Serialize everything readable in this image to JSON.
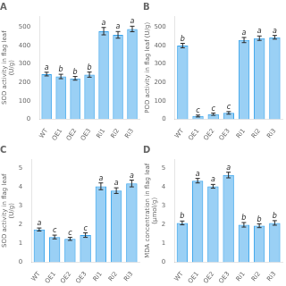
{
  "chart_data": [
    {
      "type": "bar",
      "title": "A",
      "y_label": "SOD activity in flag leaf\n(U/g)",
      "categories": [
        "WT",
        "OE1",
        "OE2",
        "OE3",
        "Ri1",
        "Ri2",
        "Ri3"
      ],
      "values": [
        245,
        232,
        222,
        242,
        478,
        458,
        490
      ],
      "errors": [
        10,
        12,
        10,
        14,
        20,
        18,
        15
      ],
      "annotations": [
        "a",
        "b",
        "b",
        "b",
        "a",
        "a",
        "a"
      ],
      "ylim": [
        0,
        560
      ],
      "yticks": [
        0,
        100,
        200,
        300,
        400,
        500
      ],
      "grid": false
    },
    {
      "type": "bar",
      "title": "B",
      "y_label": "POD activity in flag leaf (U/g)",
      "categories": [
        "WT",
        "OE1",
        "OE2",
        "OE3",
        "Ri1",
        "Ri2",
        "Ri3"
      ],
      "values": [
        400,
        18,
        28,
        35,
        430,
        440,
        445
      ],
      "errors": [
        12,
        5,
        6,
        7,
        14,
        12,
        10
      ],
      "annotations": [
        "b",
        "c",
        "c",
        "c",
        "a",
        "a",
        "a"
      ],
      "ylim": [
        0,
        560
      ],
      "yticks": [
        0,
        100,
        200,
        300,
        400,
        500
      ],
      "grid": false
    },
    {
      "type": "bar",
      "title": "C",
      "y_label": "SOD activity in flag leaf\n(U/g)",
      "categories": [
        "WT",
        "OE1",
        "OE2",
        "OE3",
        "Ri1",
        "Ri2",
        "Ri3"
      ],
      "values": [
        1.75,
        1.35,
        1.25,
        1.45,
        4.05,
        3.82,
        4.2
      ],
      "errors": [
        0.08,
        0.1,
        0.08,
        0.12,
        0.18,
        0.15,
        0.18
      ],
      "annotations": [
        "a",
        "c",
        "c",
        "c",
        "a",
        "a",
        "a"
      ],
      "ylim": [
        0,
        5.5
      ],
      "yticks": [
        0,
        1,
        2,
        3,
        4,
        5
      ],
      "grid": false
    },
    {
      "type": "bar",
      "title": "D",
      "y_label": "MDA concentration in flag leaf\n(μmol/g)",
      "categories": [
        "WT",
        "OE1",
        "OE2",
        "OE3",
        "Ri1",
        "Ri2",
        "Ri3"
      ],
      "values": [
        2.1,
        4.35,
        4.05,
        4.65,
        2.0,
        1.95,
        2.1
      ],
      "errors": [
        0.1,
        0.12,
        0.1,
        0.15,
        0.12,
        0.1,
        0.12
      ],
      "annotations": [
        "b",
        "a",
        "a",
        "a",
        "b",
        "b",
        "b"
      ],
      "ylim": [
        0,
        5.5
      ],
      "yticks": [
        0,
        1,
        2,
        3,
        4,
        5
      ],
      "grid": false
    }
  ]
}
